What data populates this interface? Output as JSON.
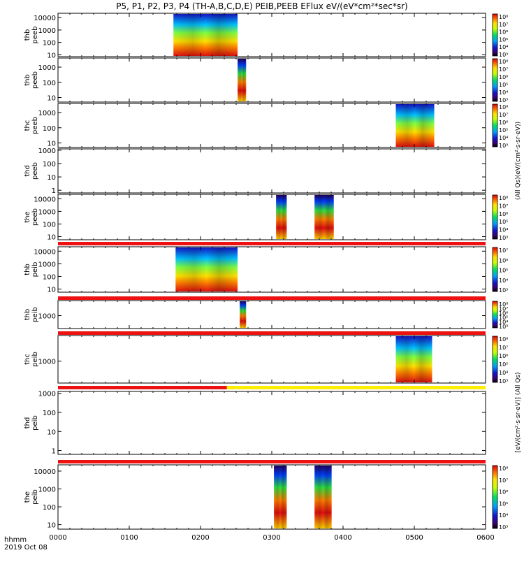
{
  "title": "P5, P1, P2, P3, P4 (TH-A,B,C,D,E) PEIB,PEEB EFlux eV/(eV*cm²*sec*sr)",
  "time_axis": {
    "label_line1": "hhmm",
    "label_line2": "2019 Oct 08",
    "ticks": [
      "0000",
      "0100",
      "0200",
      "0300",
      "0400",
      "0500",
      "0600"
    ]
  },
  "colorbar_labels": {
    "electron_side": "(All Qs)(eV/(cm²·s·sr·eV))",
    "ion_side": "[eV/(cm²·s·sr·eV)] (All Qs)"
  },
  "colors": {
    "bar_red": "#ee1111",
    "bar_yellow": "#ffee00",
    "spectrum_low": "#1e10c8",
    "spectrum_high": "#e01010"
  },
  "chart_data": [
    {
      "type": "heatmap",
      "ylabel": "thb\npeeb",
      "y_ticks": [
        "10",
        "100",
        "1000",
        "10000"
      ],
      "y_log_range": [
        0.85,
        4.35
      ],
      "cbar_ticks": [
        "10³",
        "10⁴",
        "10⁵",
        "10⁶",
        "10⁷",
        "10⁸"
      ],
      "blocks": [
        [
          0.27,
          0.42,
          "wide"
        ]
      ]
    },
    {
      "type": "heatmap",
      "ylabel": "thb\npeeb",
      "y_ticks": [
        "10",
        "100",
        "1000"
      ],
      "y_log_range": [
        0.7,
        3.6
      ],
      "cbar_ticks": [
        "10³",
        "10⁴",
        "10⁵",
        "10⁶",
        "10⁷",
        "10⁸"
      ],
      "blocks": [
        [
          0.42,
          0.44,
          "column"
        ]
      ]
    },
    {
      "type": "heatmap",
      "ylabel": "thc\npeeb",
      "y_ticks": [
        "10",
        "100",
        "1000"
      ],
      "y_log_range": [
        0.7,
        3.6
      ],
      "cbar_ticks": [
        "10³",
        "10⁴",
        "10⁵",
        "10⁶",
        "10⁷",
        "10⁸"
      ],
      "blocks": [
        [
          0.79,
          0.88,
          "wide"
        ]
      ]
    },
    {
      "type": "heatmap",
      "ylabel": "thd\npeeb",
      "y_ticks": [
        "1",
        "10",
        "100",
        "1000"
      ],
      "y_log_range": [
        -0.2,
        3.1
      ],
      "cbar_ticks": [],
      "blocks": []
    },
    {
      "type": "heatmap",
      "ylabel": "the\npeeb",
      "y_ticks": [
        "10",
        "100",
        "1000",
        "10000"
      ],
      "y_log_range": [
        0.75,
        4.35
      ],
      "cbar_ticks": [
        "10³",
        "10⁴",
        "10⁵",
        "10⁶",
        "10⁷",
        "10⁸"
      ],
      "blocks": [
        [
          0.51,
          0.535,
          "column"
        ],
        [
          0.6,
          0.645,
          "column"
        ]
      ]
    },
    {
      "type": "heatmap",
      "ylabel": "thb\npeib",
      "y_ticks": [
        "10",
        "100",
        "1000",
        "10000"
      ],
      "y_log_range": [
        0.75,
        4.35
      ],
      "cbar_ticks": [
        "10³",
        "10⁴",
        "10⁵",
        "10⁶",
        "10⁷"
      ],
      "blocks": [
        [
          0.275,
          0.42,
          "wide"
        ]
      ]
    },
    {
      "type": "heatmap",
      "ylabel": "thb\npeib",
      "y_ticks": [
        "1000"
      ],
      "y_log_range": [
        1.8,
        4.4
      ],
      "cbar_ticks": [
        "10³",
        "10⁴",
        "10⁵",
        "10⁶",
        "10⁷",
        "10⁸"
      ],
      "blocks": [
        [
          0.425,
          0.44,
          "column"
        ]
      ]
    },
    {
      "type": "heatmap",
      "ylabel": "thc\npeib",
      "y_ticks": [
        "1000"
      ],
      "y_log_range": [
        1.8,
        4.4
      ],
      "cbar_ticks": [
        "10³",
        "10⁴",
        "10⁵",
        "10⁶",
        "10⁷",
        "10⁸"
      ],
      "blocks": [
        [
          0.79,
          0.875,
          "wide"
        ]
      ]
    },
    {
      "type": "heatmap",
      "ylabel": "thd\npeib",
      "y_ticks": [
        "1",
        "10",
        "100",
        "1000"
      ],
      "y_log_range": [
        -0.2,
        3.1
      ],
      "cbar_ticks": [],
      "blocks": []
    },
    {
      "type": "heatmap",
      "ylabel": "the\npeib",
      "y_ticks": [
        "10",
        "100",
        "1000",
        "10000"
      ],
      "y_log_range": [
        0.75,
        4.35
      ],
      "cbar_ticks": [
        "10³",
        "10⁴",
        "10⁵",
        "10⁶",
        "10⁷",
        "10⁸"
      ],
      "blocks": [
        [
          0.505,
          0.535,
          "column"
        ],
        [
          0.6,
          0.64,
          "column"
        ]
      ]
    }
  ]
}
